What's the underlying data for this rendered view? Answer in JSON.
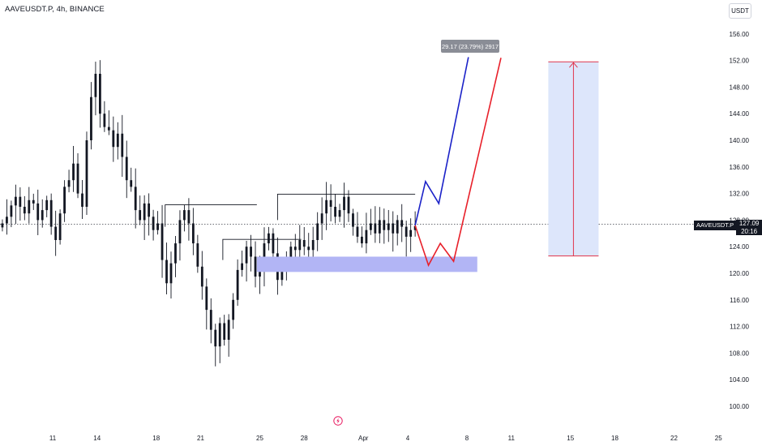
{
  "header": {
    "title": "AAVEUSDT.P, 4h, BINANCE",
    "currency": "USDT"
  },
  "last_price": {
    "symbol": "AAVEUSDT.P",
    "value": "127.09",
    "countdown": "20:16"
  },
  "measure": {
    "label": "29.17 (23.79%) 2917",
    "from": 122.6,
    "to": 151.8
  },
  "zone": {
    "low": 120.2,
    "high": 122.5
  },
  "colors": {
    "bull_path": "#1b22c8",
    "bear_path": "#e8202a",
    "zone_fill": "#b2b5f5",
    "measure_fill": "#dde6fb",
    "measure_line": "#e0334a",
    "candle": "#131722",
    "level_line": "#131722"
  },
  "icons": [
    "lightning-icon"
  ],
  "chart_data": {
    "type": "candlestick",
    "title": "AAVEUSDT.P, 4h, BINANCE",
    "ylabel": "USDT",
    "ylim": [
      98,
      158
    ],
    "y_ticks": [
      "100.00",
      "104.00",
      "108.00",
      "112.00",
      "116.00",
      "120.00",
      "124.00",
      "128.00",
      "132.00",
      "136.00",
      "140.00",
      "144.00",
      "148.00",
      "152.00",
      "156.00"
    ],
    "x_ticks": [
      "11",
      "14",
      "18",
      "21",
      "25",
      "28",
      "Apr",
      "4",
      "8",
      "11",
      "15",
      "18",
      "22",
      "25"
    ],
    "x_tick_days": [
      11,
      14,
      18,
      21,
      25,
      28,
      32,
      35,
      39,
      42,
      46,
      49,
      53,
      56
    ],
    "xlim": [
      7.55,
      57.8
    ],
    "closes": [
      [
        7.6,
        127.5
      ],
      [
        7.9,
        128.5
      ],
      [
        8.2,
        130.2
      ],
      [
        8.5,
        131.5
      ],
      [
        8.8,
        130.0
      ],
      [
        9.1,
        129.0
      ],
      [
        9.4,
        131.0
      ],
      [
        9.7,
        130.5
      ],
      [
        10.0,
        128.0
      ],
      [
        10.3,
        129.5
      ],
      [
        10.6,
        131.0
      ],
      [
        10.9,
        127.0
      ],
      [
        11.2,
        125.0
      ],
      [
        11.5,
        129.0
      ],
      [
        11.8,
        133.0
      ],
      [
        12.1,
        134.0
      ],
      [
        12.4,
        136.5
      ],
      [
        12.7,
        132.0
      ],
      [
        13.0,
        130.0
      ],
      [
        13.3,
        140.0
      ],
      [
        13.6,
        146.5
      ],
      [
        13.9,
        150.0
      ],
      [
        14.2,
        144.0
      ],
      [
        14.5,
        142.0
      ],
      [
        14.8,
        141.5
      ],
      [
        15.1,
        139.0
      ],
      [
        15.4,
        141.0
      ],
      [
        15.7,
        137.5
      ],
      [
        16.0,
        134.0
      ],
      [
        16.3,
        133.0
      ],
      [
        16.6,
        129.5
      ],
      [
        16.9,
        128.0
      ],
      [
        17.2,
        130.5
      ],
      [
        17.5,
        128.5
      ],
      [
        17.8,
        126.5
      ],
      [
        18.1,
        127.5
      ],
      [
        18.4,
        122.0
      ],
      [
        18.7,
        118.5
      ],
      [
        19.0,
        121.5
      ],
      [
        19.3,
        124.5
      ],
      [
        19.6,
        128.0
      ],
      [
        19.9,
        129.5
      ],
      [
        20.2,
        127.5
      ],
      [
        20.5,
        124.5
      ],
      [
        20.8,
        121.0
      ],
      [
        21.1,
        118.0
      ],
      [
        21.4,
        114.5
      ],
      [
        21.7,
        111.5
      ],
      [
        22.0,
        109.0
      ],
      [
        22.3,
        112.5
      ],
      [
        22.6,
        110.0
      ],
      [
        22.9,
        113.0
      ],
      [
        23.2,
        116.0
      ],
      [
        23.5,
        120.5
      ],
      [
        23.8,
        121.5
      ],
      [
        24.1,
        124.0
      ],
      [
        24.4,
        122.5
      ],
      [
        24.7,
        119.5
      ],
      [
        25.0,
        120.5
      ],
      [
        25.3,
        124.5
      ],
      [
        25.6,
        126.0
      ],
      [
        25.9,
        123.0
      ],
      [
        26.2,
        119.0
      ],
      [
        26.5,
        121.0
      ],
      [
        26.8,
        122.5
      ],
      [
        27.1,
        124.0
      ],
      [
        27.4,
        123.5
      ],
      [
        27.7,
        125.0
      ],
      [
        28.0,
        124.0
      ],
      [
        28.3,
        123.5
      ],
      [
        28.6,
        125.0
      ],
      [
        28.9,
        127.5
      ],
      [
        29.2,
        129.0
      ],
      [
        29.5,
        131.0
      ],
      [
        29.8,
        130.0
      ],
      [
        30.1,
        128.5
      ],
      [
        30.4,
        129.5
      ],
      [
        30.7,
        131.5
      ],
      [
        31.0,
        129.0
      ],
      [
        31.3,
        127.0
      ],
      [
        31.6,
        125.5
      ],
      [
        31.9,
        124.5
      ],
      [
        32.2,
        126.5
      ],
      [
        32.5,
        127.5
      ],
      [
        32.8,
        126.0
      ],
      [
        33.1,
        128.0
      ],
      [
        33.4,
        126.5
      ],
      [
        33.7,
        127.5
      ],
      [
        34.0,
        126.0
      ],
      [
        34.3,
        128.0
      ],
      [
        34.6,
        127.0
      ],
      [
        34.9,
        125.5
      ],
      [
        35.2,
        126.5
      ],
      [
        35.5,
        127.09
      ]
    ]
  }
}
